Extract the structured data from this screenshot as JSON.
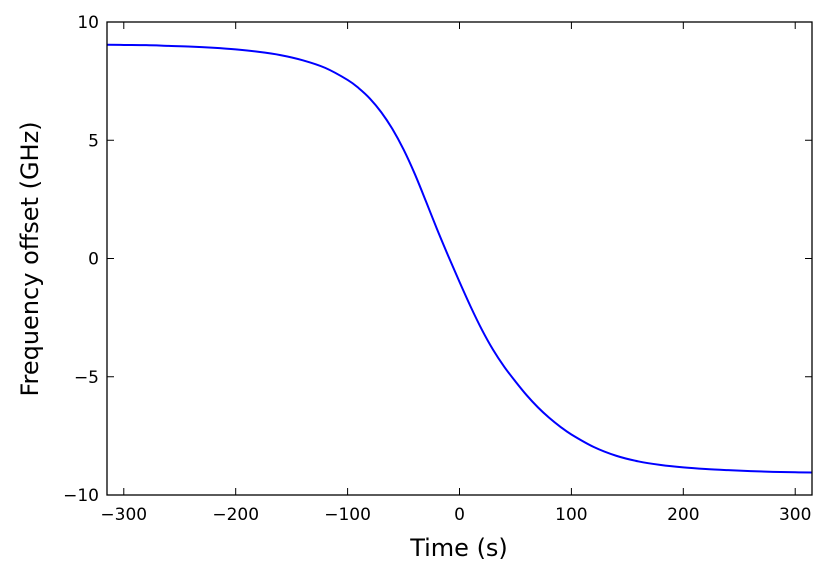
{
  "chart_data": {
    "type": "line",
    "title": "",
    "xlabel": "Time (s)",
    "ylabel": "Frequency offset (GHz)",
    "xlim": [
      -315,
      315
    ],
    "ylim": [
      -10,
      10
    ],
    "xticks": [
      -300,
      -200,
      -100,
      0,
      100,
      200,
      300
    ],
    "xtick_labels": [
      "−300",
      "−200",
      "−100",
      "0",
      "100",
      "200",
      "300"
    ],
    "yticks": [
      10,
      5,
      0,
      -5,
      -10
    ],
    "ytick_labels": [
      "10",
      "5",
      "0",
      "−5",
      "−10"
    ],
    "grid": false,
    "legend": null,
    "series": [
      {
        "color": "#0000ff",
        "x": [
          -315,
          -300,
          -280,
          -260,
          -240,
          -220,
          -200,
          -180,
          -160,
          -140,
          -120,
          -100,
          -90,
          -80,
          -70,
          -60,
          -50,
          -40,
          -30,
          -20,
          -10,
          0,
          10,
          20,
          30,
          40,
          50,
          60,
          70,
          80,
          90,
          100,
          120,
          140,
          160,
          180,
          200,
          220,
          240,
          260,
          280,
          300,
          315
        ],
        "y": [
          9.04,
          9.03,
          9.02,
          8.99,
          8.96,
          8.91,
          8.84,
          8.74,
          8.6,
          8.38,
          8.06,
          7.55,
          7.2,
          6.76,
          6.19,
          5.48,
          4.61,
          3.58,
          2.42,
          1.23,
          0.1,
          -0.99,
          -2.04,
          -3.01,
          -3.86,
          -4.58,
          -5.2,
          -5.78,
          -6.29,
          -6.73,
          -7.11,
          -7.44,
          -7.97,
          -8.34,
          -8.58,
          -8.73,
          -8.83,
          -8.9,
          -8.95,
          -8.99,
          -9.02,
          -9.04,
          -9.05
        ]
      }
    ]
  }
}
